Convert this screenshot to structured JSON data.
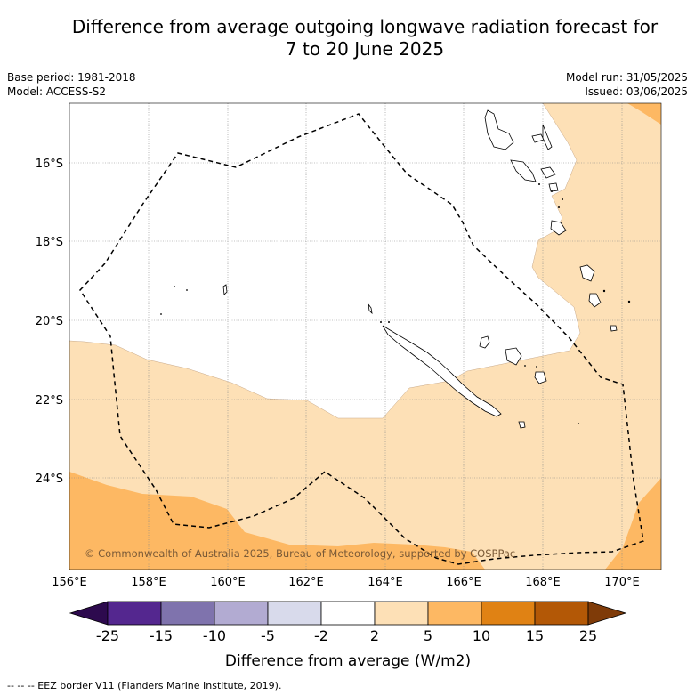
{
  "title_line1": "Difference from average outgoing longwave radiation forecast for",
  "title_line2": "7 to 20 June 2025",
  "base_period": "Base period: 1981-2018",
  "model": "Model: ACCESS-S2",
  "model_run": "Model run: 31/05/2025",
  "issued": "Issued: 03/06/2025",
  "copyright": "© Commonwealth of Australia 2025, Bureau of Meteorology, supported by COSPPac",
  "lat_labels": [
    "16°S",
    "18°S",
    "20°S",
    "22°S",
    "24°S"
  ],
  "lon_labels": [
    "156°E",
    "158°E",
    "160°E",
    "162°E",
    "164°E",
    "166°E",
    "168°E",
    "170°E"
  ],
  "colorbar": {
    "ticks": [
      "-25",
      "-15",
      "-10",
      "-5",
      "-2",
      "2",
      "5",
      "10",
      "15",
      "25"
    ],
    "colors": [
      "#2d0a4e",
      "#54278f",
      "#7f73ad",
      "#b2abd2",
      "#d8daeb",
      "#ffffff",
      "#fde0b6",
      "#fdb863",
      "#e08214",
      "#b35806",
      "#7f3b08"
    ],
    "label": "Difference from average (W/m2)"
  },
  "footnote": "-- -- -- EEZ border V11 (Flanders Marine Institute, 2019)."
}
